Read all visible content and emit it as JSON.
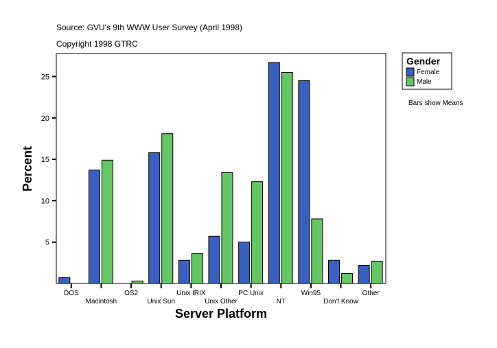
{
  "chart_data": {
    "type": "bar",
    "title": "Source: GVU's 9th WWW User Survey (April 1998)",
    "subtitle": "Copyright 1998 GTRC",
    "xlabel": "Server Platform",
    "ylabel": "Percent",
    "ylim": [
      0,
      27.5
    ],
    "yticks": [
      5,
      10,
      15,
      20,
      25
    ],
    "grid": false,
    "legend": {
      "title": "Gender",
      "placement": "right"
    },
    "note": "Bars show Means",
    "categories": [
      "DOS",
      "Macintosh",
      "OS2",
      "Unix Sun",
      "Unix IRIX",
      "Unix Other",
      "PC Unix",
      "NT",
      "Win95",
      "Don't Know",
      "Other"
    ],
    "series": [
      {
        "name": "Female",
        "color": "#3a5fbf",
        "values": [
          0.7,
          13.7,
          0,
          15.8,
          2.8,
          5.7,
          5.0,
          26.7,
          24.5,
          2.8,
          2.2
        ]
      },
      {
        "name": "Male",
        "color": "#66c566",
        "values": [
          0,
          14.9,
          0.3,
          18.1,
          3.6,
          13.4,
          12.3,
          25.5,
          7.8,
          1.2,
          2.7
        ]
      }
    ]
  }
}
